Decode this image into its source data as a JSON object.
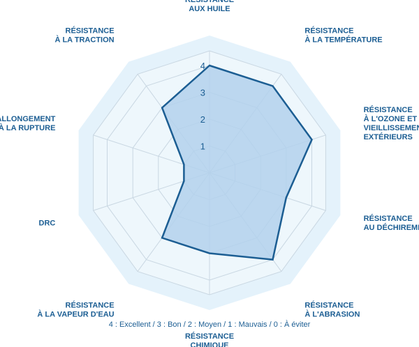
{
  "chart_data": {
    "type": "radar",
    "axis_max": 4,
    "ticks": [
      "1",
      "2",
      "3",
      "4"
    ],
    "axes": [
      {
        "lines": [
          "RÉSISTANCE",
          "AUX HUILE"
        ],
        "value": 4.0
      },
      {
        "lines": [
          "RÉSISTANCE",
          "À LA TEMPÉRATURE"
        ],
        "value": 4.0
      },
      {
        "lines": [
          "RÉSISTANCE",
          "À L'OZONE ET AUX",
          "VIEILLISSEMENTS",
          "EXTÉRIEURS"
        ],
        "value": 4.0
      },
      {
        "lines": [
          "RÉSISTANCE",
          "AU DÉCHIREMENT"
        ],
        "value": 3.0
      },
      {
        "lines": [
          "RÉSISTANCE",
          "À L'ABRASION"
        ],
        "value": 4.0
      },
      {
        "lines": [
          "RÉSISTANCE",
          "CHIMIQUE"
        ],
        "value": 3.0
      },
      {
        "lines": [
          "RÉSISTANCE",
          "À LA VAPEUR D'EAU"
        ],
        "value": 3.0
      },
      {
        "lines": [
          "DRC"
        ],
        "value": 1.0
      },
      {
        "lines": [
          "ALLONGEMENT",
          "À LA RUPTURE"
        ],
        "value": 1.0
      },
      {
        "lines": [
          "RÉSISTANCE",
          "À LA TRACTION"
        ],
        "value": 3.0
      }
    ],
    "legend": "4 : Excellent / 3 : Bon / 2 :  Moyen / 1 : Mauvais / 0 : À éviter",
    "colors": {
      "band_outer": "#e4f2fb",
      "band_inner": "#eef7fc",
      "grid": "#c9d7e2",
      "series_fill": "#b3d1ec",
      "series_stroke": "#1c5e93",
      "text": "#1c5e93"
    }
  }
}
